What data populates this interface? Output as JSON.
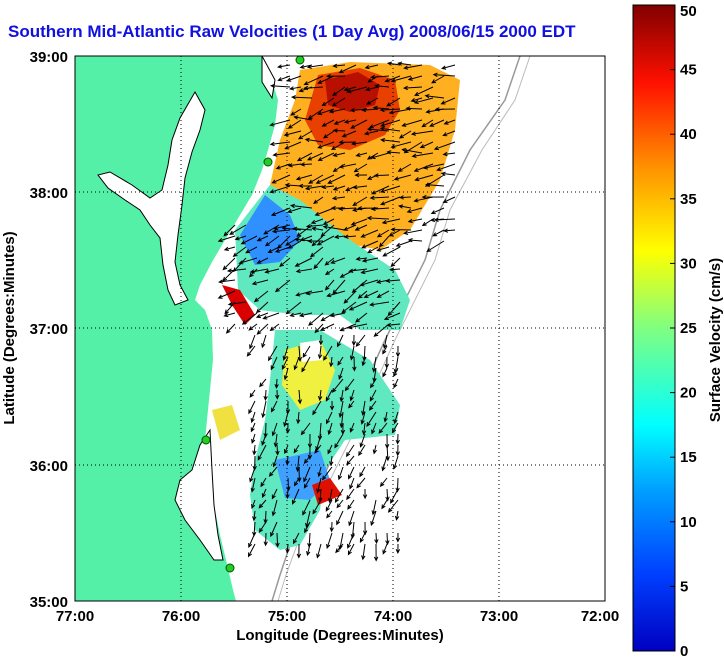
{
  "title": "Southern Mid-Atlantic Raw Velocities (1 Day Avg) 2008/06/15 2000 EDT",
  "map": {
    "xlabel": "Longitude (Degrees:Minutes)",
    "ylabel": "Latitude (Degrees:Minutes)",
    "lon_range": [
      -77,
      -72
    ],
    "lat_range": [
      35,
      39
    ],
    "x_ticks": [
      "77:00",
      "76:00",
      "75:00",
      "74:00",
      "73:00",
      "72:00"
    ],
    "y_ticks": [
      "35:00",
      "36:00",
      "37:00",
      "38:00",
      "39:00"
    ],
    "grid": "dotted",
    "land_color": "#55f0a8",
    "sites": [
      "site-1",
      "site-2",
      "site-3",
      "site-4"
    ]
  },
  "colorbar": {
    "label": "Surface Velocity (cm/s)",
    "range": [
      0,
      50
    ],
    "ticks": [
      "0",
      "5",
      "10",
      "15",
      "20",
      "25",
      "30",
      "35",
      "40",
      "45",
      "50"
    ]
  }
}
